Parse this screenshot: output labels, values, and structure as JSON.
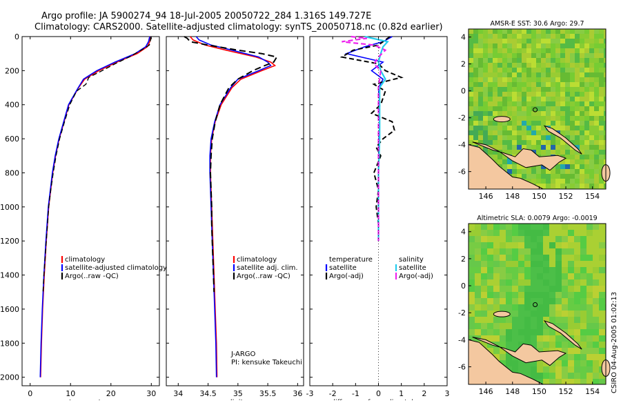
{
  "header": {
    "title_line1": "Argo profile: JA 5900274_94 18-Jul-2005 20050722_284 1.316S 149.727E",
    "title_line2": "Climatology: CARS2000. Satellite-adjusted climatology: synTS_20050718.nc (0.82d earlier)"
  },
  "footer": {
    "stamp": "CSIRO 04-Aug-2005 01:02:13"
  },
  "colors": {
    "climatology": "#ff0000",
    "satellite": "#0000ff",
    "argo": "#000000",
    "sat_salinity": "#22ccee",
    "argo_salinity": "#ee22ee",
    "land": "#f4c8a0"
  },
  "chart_data": [
    {
      "id": "temperature",
      "type": "line",
      "xlabel": "temperature",
      "xlim": [
        -2,
        32
      ],
      "ylim": [
        2050,
        0
      ],
      "xticks": [
        0,
        10,
        20,
        30
      ],
      "yticks": [
        0,
        200,
        400,
        600,
        800,
        1000,
        1200,
        1400,
        1600,
        1800,
        2000
      ],
      "legend": [
        "climatology",
        "satellite-adjusted climatology",
        "Argo(..raw -QC)"
      ],
      "series": [
        {
          "name": "climatology",
          "depth": [
            0,
            30,
            60,
            100,
            150,
            200,
            250,
            300,
            400,
            500,
            600,
            700,
            800,
            1000,
            1200,
            1400,
            1600,
            1800,
            2000
          ],
          "values": [
            29.8,
            29.6,
            29.0,
            26.5,
            21.5,
            17.0,
            13.5,
            12.0,
            9.6,
            8.4,
            7.2,
            6.3,
            5.6,
            4.6,
            4.0,
            3.5,
            3.1,
            2.8,
            2.6
          ]
        },
        {
          "name": "satellite-adjusted climatology",
          "depth": [
            0,
            30,
            60,
            100,
            150,
            200,
            250,
            300,
            400,
            500,
            600,
            700,
            800,
            1000,
            1200,
            1400,
            1600,
            1800,
            2000
          ],
          "values": [
            29.6,
            29.3,
            28.6,
            26.0,
            21.0,
            16.5,
            13.2,
            11.9,
            9.5,
            8.3,
            7.1,
            6.2,
            5.5,
            4.5,
            3.9,
            3.4,
            3.0,
            2.7,
            2.5
          ]
        },
        {
          "name": "Argo(..raw -QC)",
          "depth": [
            0,
            20,
            50,
            80,
            120,
            160,
            200,
            240,
            280,
            320,
            400,
            500,
            600,
            700,
            800,
            900,
            1000,
            1100,
            1200,
            1300,
            1400,
            1500
          ],
          "values": [
            29.9,
            29.8,
            29.5,
            27.5,
            24.5,
            21.0,
            17.8,
            14.5,
            13.8,
            11.5,
            9.8,
            8.5,
            7.3,
            6.4,
            5.7,
            5.1,
            4.6,
            4.3,
            4.0,
            3.7,
            3.4,
            3.2
          ]
        }
      ]
    },
    {
      "id": "salinity",
      "type": "line",
      "xlabel": "salinity",
      "xlim": [
        33.8,
        36.1
      ],
      "ylim": [
        2050,
        0
      ],
      "xticks": [
        34,
        34.5,
        35,
        35.5,
        36
      ],
      "yticks": [
        0,
        200,
        400,
        600,
        800,
        1000,
        1200,
        1400,
        1600,
        1800,
        2000
      ],
      "legend": [
        "climatology",
        "satellite adj. clim.",
        "Argo(..raw -QC)"
      ],
      "annotation": [
        "J-ARGO",
        "PI: kensuke Takeuchi"
      ],
      "series": [
        {
          "name": "climatology",
          "depth": [
            0,
            20,
            50,
            80,
            120,
            150,
            170,
            200,
            250,
            300,
            400,
            500,
            600,
            700,
            800,
            1000,
            1200,
            1400,
            1600,
            1800,
            2000
          ],
          "values": [
            34.2,
            34.25,
            34.45,
            34.8,
            35.3,
            35.55,
            35.62,
            35.4,
            35.05,
            34.9,
            34.72,
            34.62,
            34.56,
            34.54,
            34.54,
            34.56,
            34.58,
            34.6,
            34.62,
            34.64,
            34.65
          ]
        },
        {
          "name": "satellite adj. clim.",
          "depth": [
            0,
            20,
            50,
            80,
            120,
            150,
            170,
            200,
            250,
            300,
            400,
            500,
            600,
            700,
            800,
            1000,
            1200,
            1400,
            1600,
            1800,
            2000
          ],
          "values": [
            34.3,
            34.35,
            34.55,
            34.9,
            35.35,
            35.5,
            35.55,
            35.35,
            35.0,
            34.88,
            34.7,
            34.61,
            34.55,
            34.53,
            34.53,
            34.55,
            34.57,
            34.59,
            34.61,
            34.63,
            34.64
          ]
        },
        {
          "name": "Argo(..raw -QC)",
          "depth": [
            0,
            10,
            30,
            50,
            80,
            100,
            120,
            150,
            170,
            200,
            250,
            300,
            400,
            500,
            600,
            700,
            800,
            900,
            1000,
            1100,
            1200,
            1300,
            1400,
            1500
          ],
          "values": [
            34.1,
            34.15,
            34.2,
            34.5,
            35.0,
            35.4,
            35.65,
            35.6,
            35.45,
            35.25,
            35.0,
            34.85,
            34.7,
            34.62,
            34.57,
            34.55,
            34.54,
            34.55,
            34.56,
            34.56,
            34.57,
            34.58,
            34.59,
            34.6
          ]
        }
      ]
    },
    {
      "id": "difference",
      "type": "line",
      "xlabel": "difference from climatology",
      "xlim": [
        -3,
        3
      ],
      "ylim": [
        2050,
        0
      ],
      "xticks": [
        -3,
        -2,
        -1,
        0,
        1,
        2,
        3
      ],
      "yticks": [
        0,
        200,
        400,
        600,
        800,
        1000,
        1200,
        1400,
        1600,
        1800,
        2000
      ],
      "legend_temperature": [
        "temperature",
        "satellite",
        "Argo(-adj)"
      ],
      "legend_salinity": [
        "salinity",
        "satellite",
        "Argo(-adj)"
      ],
      "series": [
        {
          "name": "temperature satellite",
          "depth": [
            0,
            30,
            60,
            100,
            150,
            200,
            250,
            300,
            400,
            500,
            600,
            800,
            1000,
            1200
          ],
          "values": [
            0.6,
            0.2,
            -0.6,
            -1.4,
            0.2,
            -0.3,
            0.2,
            0.0,
            0.05,
            0.05,
            0.02,
            0.0,
            0.0,
            0.0
          ]
        },
        {
          "name": "temperature Argo(-adj)",
          "depth": [
            0,
            20,
            50,
            80,
            120,
            160,
            200,
            240,
            280,
            320,
            400,
            450,
            500,
            550,
            600,
            650,
            700,
            800,
            900,
            1000,
            1100,
            1200
          ],
          "values": [
            0.5,
            0.3,
            0.0,
            -1.1,
            -1.6,
            0.0,
            0.3,
            1.0,
            -0.2,
            0.3,
            0.1,
            -0.3,
            0.6,
            0.7,
            0.2,
            -0.1,
            0.1,
            -0.2,
            0.0,
            -0.1,
            0.0,
            0.0
          ]
        },
        {
          "name": "salinity satellite",
          "depth": [
            0,
            30,
            60,
            100,
            150,
            200,
            250,
            300,
            400,
            500,
            600,
            800,
            1000,
            1200
          ],
          "values": [
            -0.6,
            0.4,
            0.2,
            0.1,
            0.0,
            0.1,
            0.3,
            0.05,
            0.05,
            0.05,
            0.05,
            0.0,
            0.0,
            0.0
          ]
        },
        {
          "name": "salinity Argo(-adj)",
          "depth": [
            0,
            10,
            30,
            50,
            80,
            120,
            160,
            200,
            300,
            400,
            500,
            600,
            700,
            800,
            900,
            1000,
            1100,
            1200
          ],
          "values": [
            -1.2,
            -0.5,
            -1.6,
            -0.2,
            0.3,
            0.0,
            -0.2,
            0.1,
            0.0,
            0.0,
            0.0,
            0.0,
            0.0,
            0.0,
            0.0,
            0.0,
            0.0,
            0.0
          ]
        }
      ]
    },
    {
      "id": "sst_map",
      "type": "heatmap",
      "title": "AMSR-E SST: 30.6 Argo: 29.7",
      "xticks": [
        146,
        148,
        150,
        152,
        154
      ],
      "yticks": [
        4,
        2,
        0,
        -2,
        -4,
        -6
      ],
      "xlim": [
        144.7,
        155.0
      ],
      "ylim": [
        -7.3,
        4.6
      ]
    },
    {
      "id": "sla_map",
      "type": "heatmap",
      "title": "Altimetric SLA: 0.0079 Argo: -0.0019",
      "xticks": [
        146,
        148,
        150,
        152,
        154
      ],
      "yticks": [
        4,
        2,
        0,
        -2,
        -4,
        -6
      ],
      "xlim": [
        144.7,
        155.0
      ],
      "ylim": [
        -7.3,
        4.6
      ]
    }
  ]
}
